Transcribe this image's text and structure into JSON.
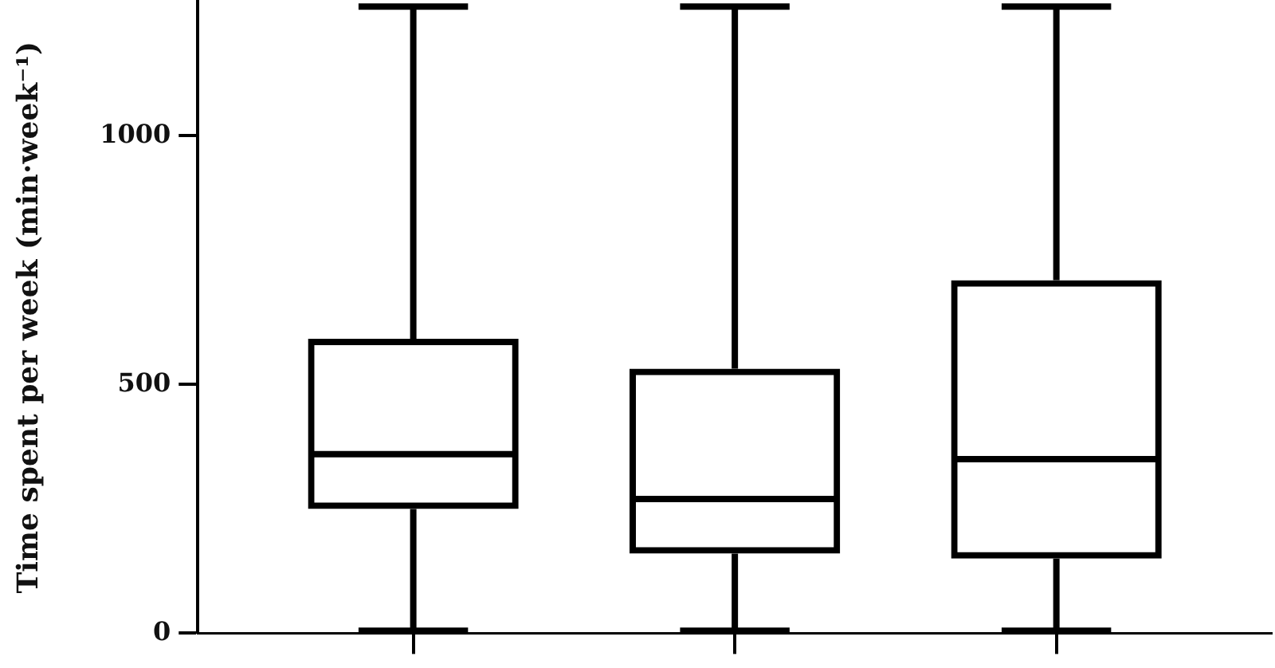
{
  "chart_data": {
    "type": "box",
    "ylabel": "Time spent per week (min·week⁻¹)",
    "categories": [
      null,
      null,
      null
    ],
    "boxes": [
      {
        "low": 5,
        "q1": 250,
        "median": 360,
        "q3": 592,
        "high": 1260
      },
      {
        "low": 5,
        "q1": 160,
        "median": 270,
        "q3": 532,
        "high": 1260
      },
      {
        "low": 5,
        "q1": 150,
        "median": 350,
        "q3": 710,
        "high": 1260
      }
    ],
    "color": "#000000",
    "ylim": [
      0,
      1270
    ],
    "yticks": [
      0,
      500,
      1000
    ],
    "grid": false,
    "legend": false
  }
}
